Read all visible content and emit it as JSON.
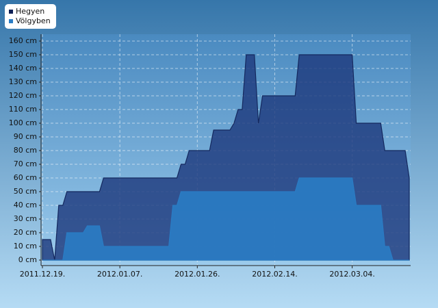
{
  "chart_data": {
    "type": "area",
    "x": [
      "2011-12-19",
      "2011-12-21",
      "2011-12-22",
      "2011-12-23",
      "2011-12-24",
      "2011-12-25",
      "2011-12-29",
      "2011-12-30",
      "2012-01-02",
      "2012-01-03",
      "2012-01-19",
      "2012-01-20",
      "2012-01-21",
      "2012-01-22",
      "2012-01-23",
      "2012-01-24",
      "2012-01-29",
      "2012-01-30",
      "2012-02-03",
      "2012-02-04",
      "2012-02-05",
      "2012-02-06",
      "2012-02-07",
      "2012-02-09",
      "2012-02-10",
      "2012-02-11",
      "2012-02-19",
      "2012-02-20",
      "2012-03-04",
      "2012-03-05",
      "2012-03-11",
      "2012-03-12",
      "2012-03-13",
      "2012-03-14",
      "2012-03-17",
      "2012-03-18"
    ],
    "series": [
      {
        "name": "Hegyen",
        "color": "#1e3a7e",
        "values": [
          15,
          15,
          0,
          40,
          40,
          50,
          50,
          50,
          50,
          60,
          60,
          60,
          60,
          70,
          70,
          80,
          80,
          95,
          95,
          100,
          110,
          110,
          150,
          150,
          100,
          120,
          120,
          150,
          150,
          100,
          100,
          80,
          80,
          80,
          80,
          60
        ]
      },
      {
        "name": "Völgyben",
        "color": "#2a7cc4",
        "values": [
          0,
          0,
          0,
          0,
          0,
          20,
          20,
          25,
          25,
          10,
          10,
          40,
          40,
          50,
          50,
          50,
          50,
          50,
          50,
          50,
          50,
          50,
          50,
          50,
          50,
          50,
          50,
          60,
          60,
          40,
          40,
          10,
          10,
          0,
          0,
          0
        ]
      }
    ],
    "xlim": [
      "2011-12-19",
      "2012-03-18"
    ],
    "xticks": [
      {
        "value": "2011-12-19",
        "label": "2011.12.19."
      },
      {
        "value": "2012-01-07",
        "label": "2012.01.07."
      },
      {
        "value": "2012-01-26",
        "label": "2012.01.26."
      },
      {
        "value": "2012-02-14",
        "label": "2012.02.14."
      },
      {
        "value": "2012-03-04",
        "label": "2012.03.04."
      }
    ],
    "ylim": [
      -4,
      165
    ],
    "yticks": [
      {
        "value": 0,
        "label": "0 cm"
      },
      {
        "value": 10,
        "label": "10 cm"
      },
      {
        "value": 20,
        "label": "20 cm"
      },
      {
        "value": 30,
        "label": "30 cm"
      },
      {
        "value": 40,
        "label": "40 cm"
      },
      {
        "value": 50,
        "label": "50 cm"
      },
      {
        "value": 60,
        "label": "60 cm"
      },
      {
        "value": 70,
        "label": "70 cm"
      },
      {
        "value": 80,
        "label": "80 cm"
      },
      {
        "value": 90,
        "label": "90 cm"
      },
      {
        "value": 100,
        "label": "100 cm"
      },
      {
        "value": 110,
        "label": "110 cm"
      },
      {
        "value": 120,
        "label": "120 cm"
      },
      {
        "value": 130,
        "label": "130 cm"
      },
      {
        "value": 140,
        "label": "140 cm"
      },
      {
        "value": 150,
        "label": "150 cm"
      },
      {
        "value": 160,
        "label": "160 cm"
      }
    ],
    "grid": true,
    "legend": "top-left"
  }
}
